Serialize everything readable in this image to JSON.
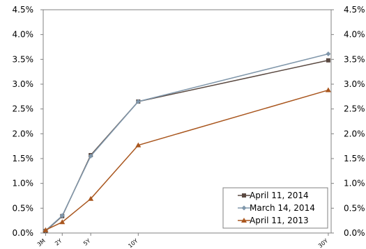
{
  "chart_data": {
    "type": "line",
    "title": "",
    "xlabel": "",
    "ylabel": "",
    "x": [
      "3M",
      "2Y",
      "5Y",
      "10Y",
      "30Y"
    ],
    "x_years": [
      0.25,
      2,
      5,
      10,
      30
    ],
    "ylim": [
      0,
      4.5
    ],
    "yticks": [
      "0.0%",
      "0.5%",
      "1.0%",
      "1.5%",
      "2.0%",
      "2.5%",
      "3.0%",
      "3.5%",
      "4.0%",
      "4.5%"
    ],
    "y_axes": "left-and-right",
    "legend_position": "bottom-right",
    "grid": false,
    "series": [
      {
        "name": "April 11, 2014",
        "color": "#5b4a42",
        "marker": "square",
        "values": [
          0.04,
          0.34,
          1.57,
          2.65,
          3.48
        ]
      },
      {
        "name": "March 14, 2014",
        "color": "#8097ab",
        "marker": "diamond",
        "values": [
          0.05,
          0.35,
          1.55,
          2.65,
          3.61
        ]
      },
      {
        "name": "April 11, 2013",
        "color": "#a9561e",
        "marker": "triangle",
        "values": [
          0.06,
          0.22,
          0.69,
          1.77,
          2.88
        ]
      }
    ]
  }
}
